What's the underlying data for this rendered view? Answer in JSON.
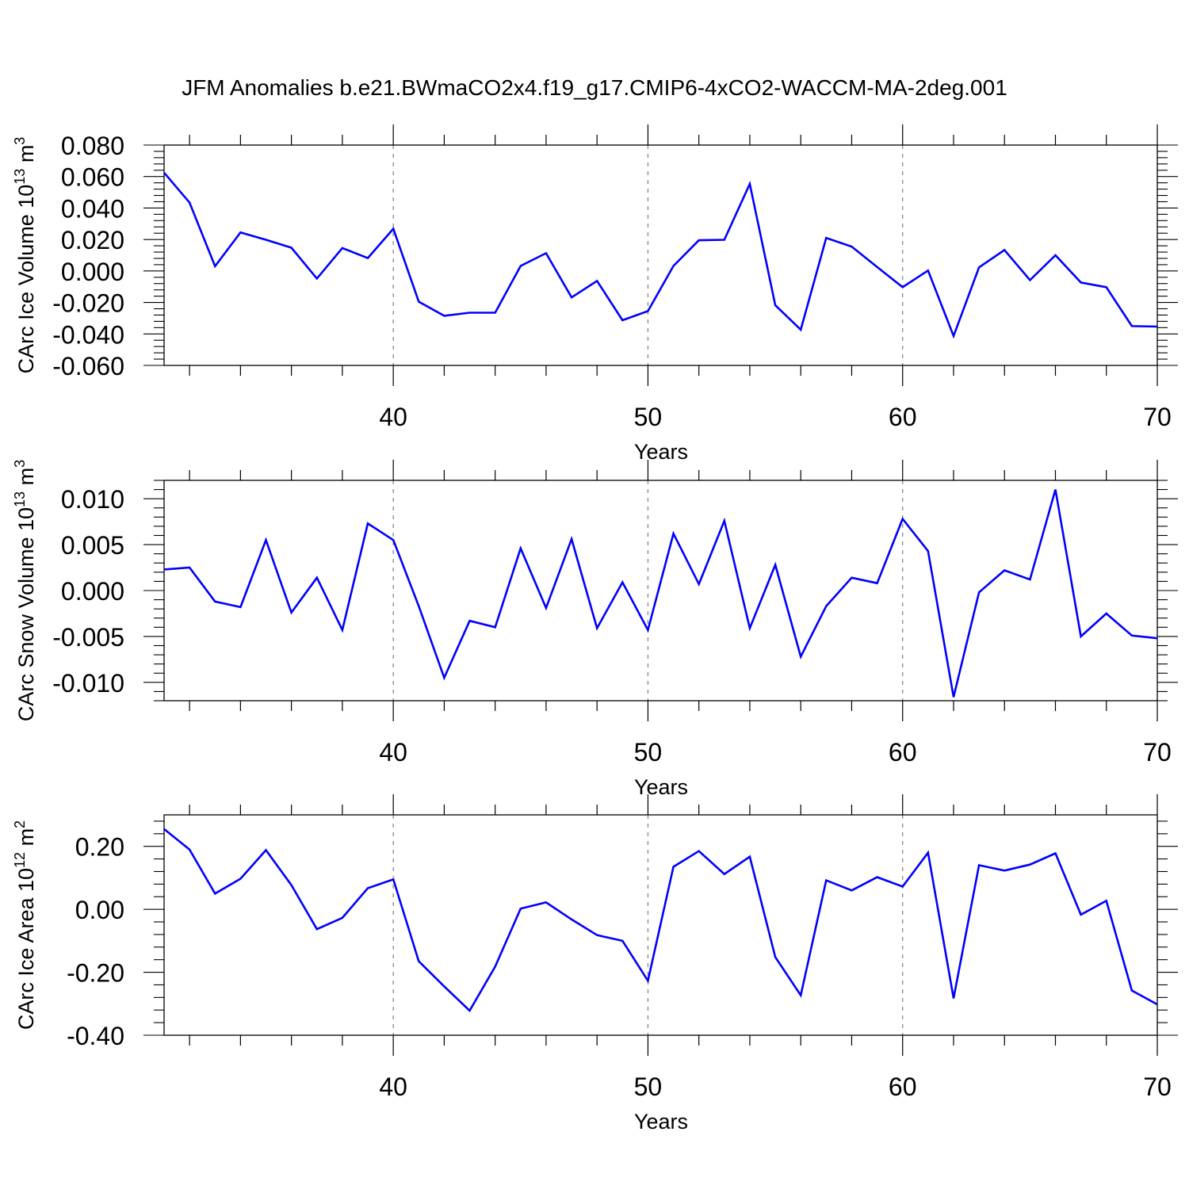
{
  "figure": {
    "title": "JFM Anomalies b.e21.BWmaCO2x4.f19_g17.CMIP6-4xCO2-WACCM-MA-2deg.001",
    "line_color": "#0000ff",
    "grid_color": "#808080"
  },
  "chart_data": [
    {
      "type": "line",
      "ylabel": {
        "prefix": "CArc Ice Volume 10",
        "sup1": "13",
        "mid": " m",
        "sup2": "3"
      },
      "xlabel": "Years",
      "xlim": [
        31,
        70
      ],
      "ylim": [
        -0.06,
        0.08
      ],
      "xticks": [
        40,
        50,
        60,
        70
      ],
      "xtick_labels": [
        "40",
        "50",
        "60",
        "70"
      ],
      "yticks": [
        -0.06,
        -0.04,
        -0.02,
        0.0,
        0.02,
        0.04,
        0.06,
        0.08
      ],
      "ytick_labels": [
        "-0.060",
        "-0.040",
        "-0.020",
        "0.000",
        "0.020",
        "0.040",
        "0.060",
        "0.080"
      ],
      "grid_x": [
        40,
        50,
        60
      ],
      "x": [
        31,
        32,
        33,
        34,
        35,
        36,
        37,
        38,
        39,
        40,
        41,
        42,
        43,
        44,
        45,
        46,
        47,
        48,
        49,
        50,
        51,
        52,
        53,
        54,
        55,
        56,
        57,
        58,
        59,
        60,
        61,
        62,
        63,
        64,
        65,
        66,
        67,
        68,
        69,
        70
      ],
      "series": [
        {
          "values": [
            0.0625,
            0.0435,
            0.003,
            0.0245,
            0.0198,
            0.0148,
            -0.0048,
            0.0146,
            0.0082,
            0.0268,
            -0.0195,
            -0.0285,
            -0.0265,
            -0.0265,
            0.0032,
            0.0113,
            -0.0168,
            -0.0063,
            -0.0313,
            -0.0255,
            0.0032,
            0.0195,
            0.0198,
            0.0553,
            -0.0218,
            -0.0373,
            0.021,
            0.0155,
            0.0025,
            -0.0103,
            0.0003,
            -0.0413,
            0.0023,
            0.0133,
            -0.0058,
            0.01,
            -0.0073,
            -0.0103,
            -0.035,
            -0.0353
          ]
        }
      ]
    },
    {
      "type": "line",
      "ylabel": {
        "prefix": "CArc Snow Volume 10",
        "sup1": "13",
        "mid": " m",
        "sup2": "3"
      },
      "xlabel": "Years",
      "xlim": [
        31,
        70
      ],
      "ylim": [
        -0.012,
        0.012
      ],
      "xticks": [
        40,
        50,
        60,
        70
      ],
      "xtick_labels": [
        "40",
        "50",
        "60",
        "70"
      ],
      "yticks": [
        -0.01,
        -0.005,
        0.0,
        0.005,
        0.01
      ],
      "ytick_labels": [
        "-0.010",
        "-0.005",
        "0.000",
        "0.005",
        "0.010"
      ],
      "grid_x": [
        40,
        50,
        60
      ],
      "x": [
        31,
        32,
        33,
        34,
        35,
        36,
        37,
        38,
        39,
        40,
        41,
        42,
        43,
        44,
        45,
        46,
        47,
        48,
        49,
        50,
        51,
        52,
        53,
        54,
        55,
        56,
        57,
        58,
        59,
        60,
        61,
        62,
        63,
        64,
        65,
        66,
        67,
        68,
        69,
        70
      ],
      "series": [
        {
          "values": [
            0.0023,
            0.0025,
            -0.0012,
            -0.0018,
            0.0055,
            -0.0024,
            0.0014,
            -0.0043,
            0.0073,
            0.0055,
            -0.0017,
            -0.0095,
            -0.0033,
            -0.004,
            0.0046,
            -0.0019,
            0.0056,
            -0.0041,
            0.0009,
            -0.0043,
            0.0062,
            0.0007,
            0.0076,
            -0.0041,
            0.0028,
            -0.0072,
            -0.0017,
            0.0014,
            0.0008,
            0.0078,
            0.0043,
            -0.0116,
            -0.0002,
            0.0022,
            0.0012,
            0.011,
            -0.005,
            -0.0025,
            -0.0049,
            -0.0052
          ]
        }
      ]
    },
    {
      "type": "line",
      "ylabel": {
        "prefix": "CArc Ice Area 10",
        "sup1": "12",
        "mid": " m",
        "sup2": "2"
      },
      "xlabel": "Years",
      "xlim": [
        31,
        70
      ],
      "ylim": [
        -0.4,
        0.3
      ],
      "xticks": [
        40,
        50,
        60,
        70
      ],
      "xtick_labels": [
        "40",
        "50",
        "60",
        "70"
      ],
      "yticks": [
        -0.4,
        -0.2,
        0.0,
        0.2
      ],
      "ytick_labels": [
        "-0.40",
        "-0.20",
        "0.00",
        "0.20"
      ],
      "grid_x": [
        40,
        50,
        60
      ],
      "x": [
        31,
        32,
        33,
        34,
        35,
        36,
        37,
        38,
        39,
        40,
        41,
        42,
        43,
        44,
        45,
        46,
        47,
        48,
        49,
        50,
        51,
        52,
        53,
        54,
        55,
        56,
        57,
        58,
        59,
        60,
        61,
        62,
        63,
        64,
        65,
        66,
        67,
        68,
        69,
        70
      ],
      "series": [
        {
          "values": [
            0.255,
            0.19,
            0.05,
            0.097,
            0.188,
            0.077,
            -0.063,
            -0.027,
            0.067,
            0.095,
            -0.165,
            -0.245,
            -0.322,
            -0.182,
            0.002,
            0.022,
            -0.032,
            -0.082,
            -0.1,
            -0.227,
            0.135,
            0.185,
            0.112,
            0.167,
            -0.152,
            -0.273,
            0.092,
            0.06,
            0.102,
            0.072,
            0.18,
            -0.283,
            0.14,
            0.123,
            0.142,
            0.178,
            -0.017,
            0.027,
            -0.258,
            -0.302
          ]
        }
      ]
    }
  ]
}
